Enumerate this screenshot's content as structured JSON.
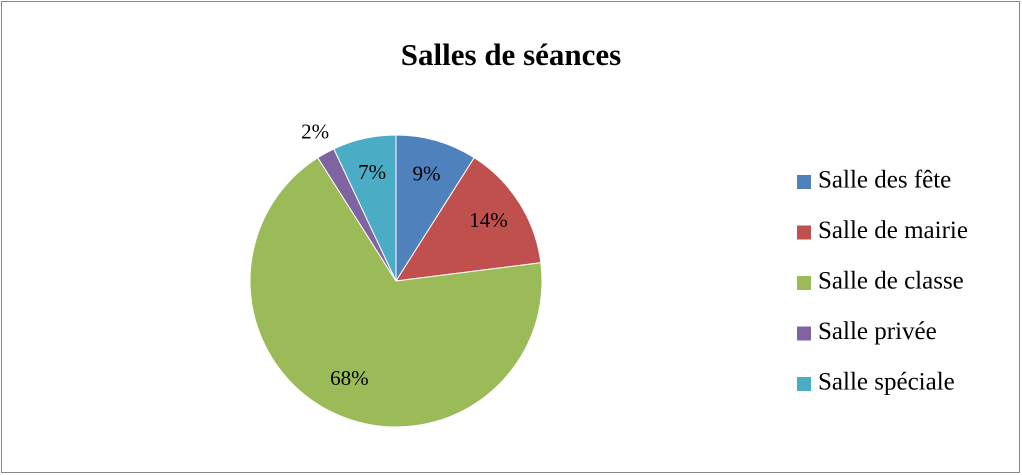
{
  "chart_data": {
    "type": "pie",
    "title": "Salles de séances",
    "categories": [
      "Salle des fête",
      "Salle de mairie",
      "Salle de classe",
      "Salle privée",
      "Salle spéciale"
    ],
    "values": [
      9,
      14,
      68,
      2,
      7
    ],
    "value_labels": [
      "9%",
      "14%",
      "68%",
      "2%",
      "7%"
    ],
    "colors": [
      "#4f81bd",
      "#c0504d",
      "#9bbb59",
      "#8064a2",
      "#4bacc6"
    ],
    "legend": "right"
  }
}
